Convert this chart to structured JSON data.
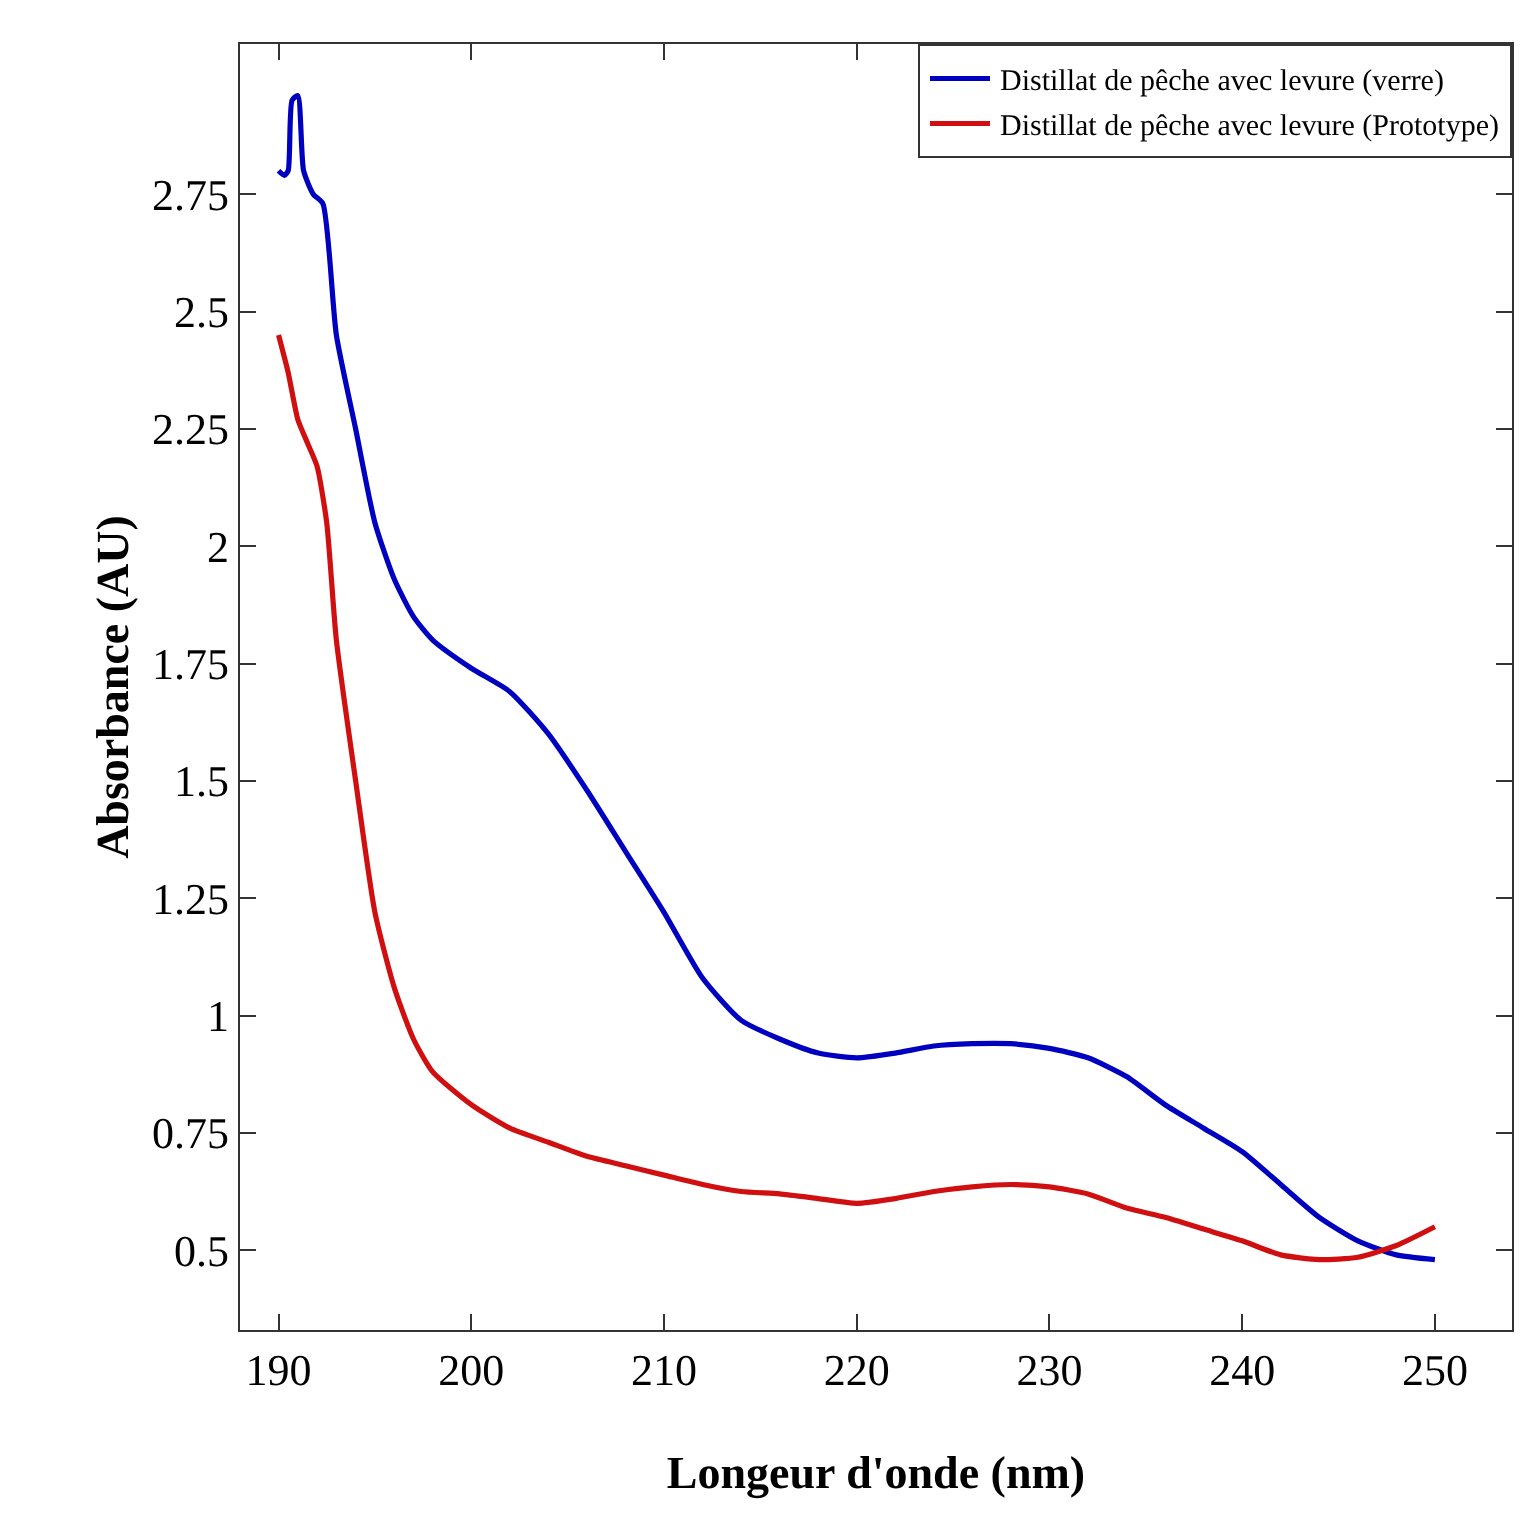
{
  "chart_data": {
    "type": "line",
    "xlabel": "Longeur d'onde (nm)",
    "ylabel": "Absorbance (AU)",
    "xlim": [
      188,
      254
    ],
    "xticks": [
      190,
      200,
      210,
      220,
      230,
      240,
      250
    ],
    "ylim": [
      0.33,
      3.07
    ],
    "yticks": [
      0.5,
      0.75,
      1,
      1.25,
      1.5,
      1.75,
      2,
      2.25,
      2.5,
      2.75
    ],
    "grid": false,
    "legend": "top right",
    "line_style": "solid",
    "series": [
      {
        "name": "Distillat de pêche avec levure (verre)",
        "color": "#0000c0",
        "x": [
          190,
          190.3,
          190.5,
          190.7,
          191,
          191.3,
          191.8,
          192.3,
          193,
          194,
          195,
          196,
          197,
          198,
          200,
          202,
          204,
          206,
          208,
          210,
          212,
          214,
          216,
          218,
          220,
          222,
          224,
          226,
          228,
          230,
          232,
          234,
          236,
          238,
          240,
          242,
          244,
          246,
          248,
          250
        ],
        "values": [
          2.8,
          2.79,
          2.8,
          2.95,
          2.96,
          2.8,
          2.75,
          2.73,
          2.45,
          2.25,
          2.05,
          1.93,
          1.85,
          1.8,
          1.74,
          1.69,
          1.6,
          1.48,
          1.35,
          1.22,
          1.08,
          0.99,
          0.95,
          0.92,
          0.91,
          0.92,
          0.935,
          0.94,
          0.94,
          0.93,
          0.91,
          0.87,
          0.81,
          0.76,
          0.71,
          0.64,
          0.57,
          0.52,
          0.49,
          0.48
        ]
      },
      {
        "name": "Distillat de pêche avec levure (Prototype)",
        "color": "#d01010",
        "x": [
          190,
          190.5,
          191,
          191.5,
          192,
          192.5,
          193,
          194,
          195,
          196,
          197,
          198,
          200,
          202,
          204,
          206,
          208,
          210,
          212,
          214,
          216,
          218,
          220,
          222,
          224,
          226,
          228,
          230,
          232,
          234,
          236,
          238,
          240,
          242,
          244,
          246,
          248,
          250
        ],
        "values": [
          2.45,
          2.37,
          2.27,
          2.22,
          2.17,
          2.05,
          1.8,
          1.5,
          1.22,
          1.06,
          0.95,
          0.88,
          0.81,
          0.76,
          0.73,
          0.7,
          0.68,
          0.66,
          0.64,
          0.625,
          0.62,
          0.61,
          0.6,
          0.61,
          0.625,
          0.635,
          0.64,
          0.635,
          0.62,
          0.59,
          0.57,
          0.545,
          0.52,
          0.49,
          0.48,
          0.485,
          0.51,
          0.55
        ]
      }
    ]
  }
}
